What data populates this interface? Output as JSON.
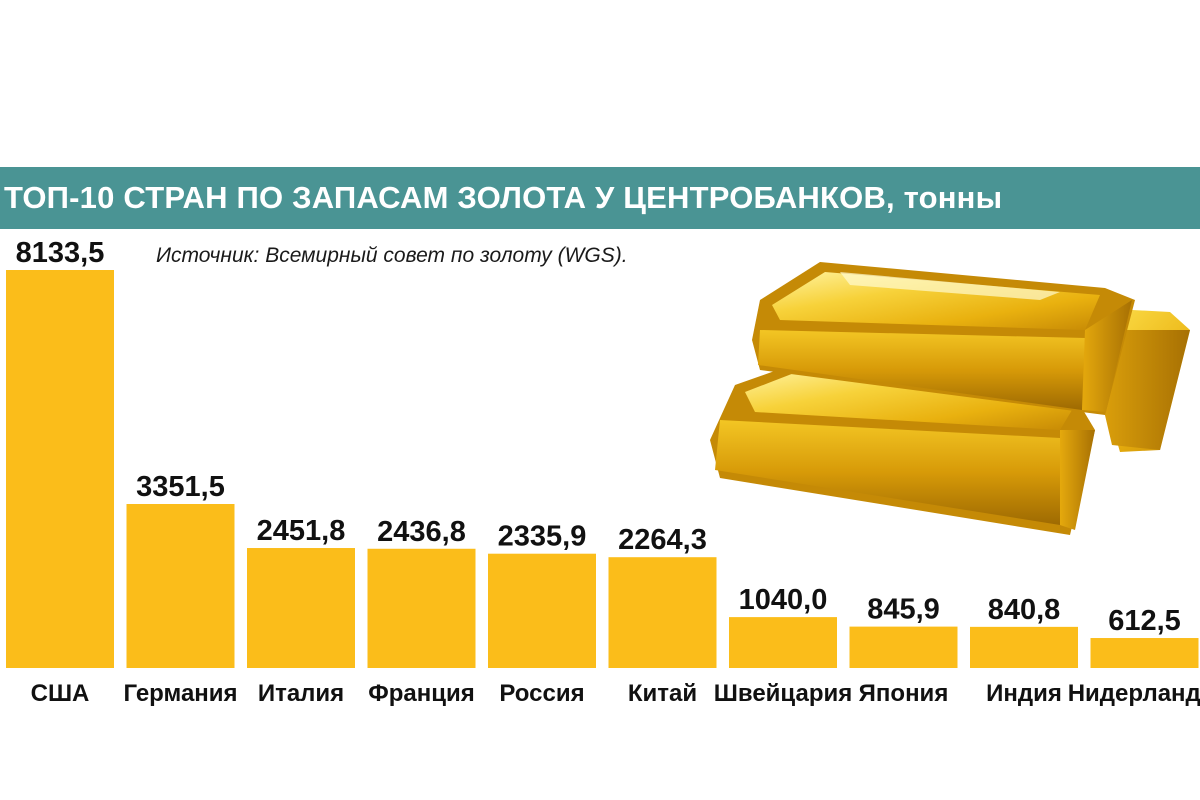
{
  "header": {
    "title": "ТОП-10 СТРАН ПО ЗАПАСАМ ЗОЛОТА У ЦЕНТРОБАНКОВ, тонны",
    "source": "Источник: Всемирный совет по золоту (WGS)."
  },
  "colors": {
    "band": "#4a9494",
    "bar": "#fbbd1a",
    "text": "#111111"
  },
  "illustration": {
    "icon": "gold-bars-icon"
  },
  "chart_data": {
    "type": "bar",
    "title": "ТОП-10 СТРАН ПО ЗАПАСАМ ЗОЛОТА У ЦЕНТРОБАНКОВ, тонны",
    "categories": [
      "США",
      "Германия",
      "Италия",
      "Франция",
      "Россия",
      "Китай",
      "Швейцария",
      "Япония",
      "Индия",
      "Нидерланды"
    ],
    "values": [
      8133.5,
      3351.5,
      2451.8,
      2436.8,
      2335.9,
      2264.3,
      1040.0,
      845.9,
      840.8,
      612.5
    ],
    "value_labels": [
      "8133,5",
      "3351,5",
      "2451,8",
      "2436,8",
      "2335,9",
      "2264,3",
      "1040,0",
      "845,9",
      "840,8",
      "612,5"
    ],
    "xlabel": "",
    "ylabel": "",
    "ylim": [
      0,
      8133.5
    ],
    "grid": false,
    "legend": "none"
  }
}
